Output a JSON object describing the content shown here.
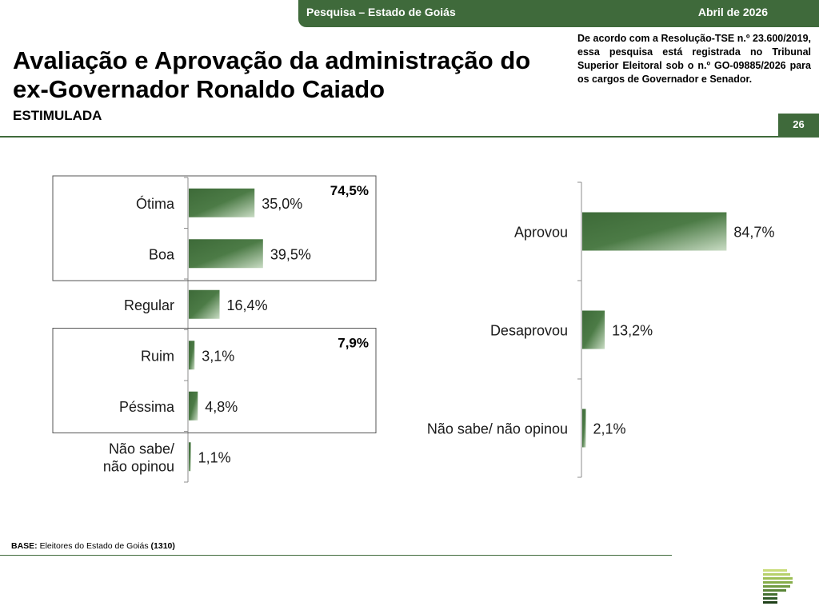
{
  "header": {
    "survey": "Pesquisa – Estado de Goiás",
    "date": "Abril de 2026",
    "title_line1": "Avaliação e Aprovação da administração do",
    "title_line2": "ex-Governador Ronaldo Caiado",
    "subtitle": "ESTIMULADA",
    "notice": "De acordo com a Resolução-TSE n.º 23.600/2019, essa pesquisa está registrada no Tribunal Superior Eleitoral sob o n.º GO-09885/2026 para os cargos de Governador e Senador.",
    "page_number": "26"
  },
  "footer": {
    "base_label": "BASE:",
    "base_text": " Eleitores do Estado de Goiás ",
    "base_n": "(1310)"
  },
  "colors": {
    "brand_green": "#3f6a3b",
    "bar_dark": "#3d6a38",
    "bar_light": "#c9dcc4"
  },
  "chart_data": [
    {
      "type": "bar",
      "orientation": "horizontal",
      "categories": [
        "Ótima",
        "Boa",
        "Regular",
        "Ruim",
        "Péssima",
        "Não sabe/ não opinou"
      ],
      "values": [
        35.0,
        39.5,
        16.4,
        3.1,
        4.8,
        1.1
      ],
      "value_labels": [
        "35,0%",
        "39,5%",
        "16,4%",
        "3,1%",
        "4,8%",
        "1,1%"
      ],
      "groups": [
        {
          "categories": [
            "Ótima",
            "Boa"
          ],
          "total": 74.5,
          "label": "74,5%"
        },
        {
          "categories": [
            "Ruim",
            "Péssima"
          ],
          "total": 7.9,
          "label": "7,9%"
        }
      ],
      "xlim": [
        0,
        100
      ]
    },
    {
      "type": "bar",
      "orientation": "horizontal",
      "categories": [
        "Aprovou",
        "Desaprovou",
        "Não sabe/ não opinou"
      ],
      "values": [
        84.7,
        13.2,
        2.1
      ],
      "value_labels": [
        "84,7%",
        "13,2%",
        "2,1%"
      ],
      "xlim": [
        0,
        100
      ]
    }
  ]
}
